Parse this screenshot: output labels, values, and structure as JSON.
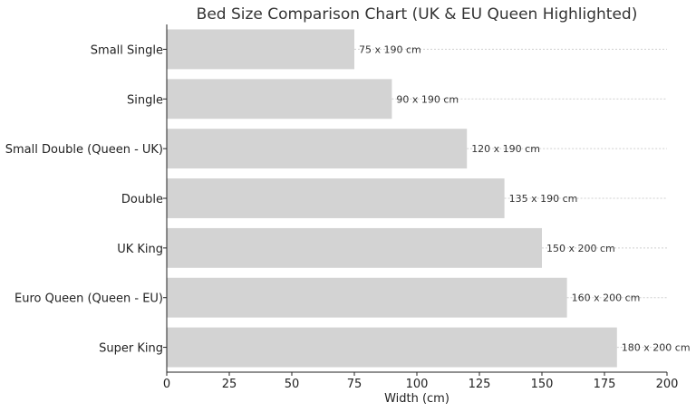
{
  "chart_data": {
    "type": "bar",
    "orientation": "horizontal",
    "title": "Bed Size Comparison Chart (UK & EU Queen Highlighted)",
    "xlabel": "Width (cm)",
    "ylabel": "",
    "xlim": [
      0,
      200
    ],
    "xticks": [
      0,
      25,
      50,
      75,
      100,
      125,
      150,
      175,
      200
    ],
    "grid": "x-dashed",
    "bar_color": "#d3d3d3",
    "categories": [
      "Small Single",
      "Single",
      "Small Double (Queen - UK)",
      "Double",
      "UK King",
      "Euro Queen (Queen - EU)",
      "Super King"
    ],
    "values": [
      75,
      90,
      120,
      135,
      150,
      160,
      180
    ],
    "data_labels": [
      "75 x 190 cm",
      "90 x 190 cm",
      "120 x 190 cm",
      "135 x 190 cm",
      "150 x 200 cm",
      "160 x 200 cm",
      "180 x 200 cm"
    ]
  }
}
